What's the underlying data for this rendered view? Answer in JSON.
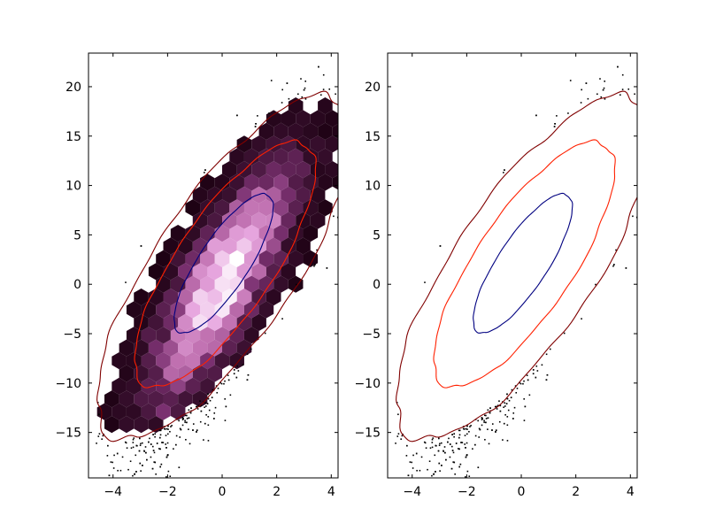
{
  "chart_data": [
    {
      "type": "hexbin_contour",
      "title": "",
      "xlabel": "",
      "ylabel": "",
      "xlim": [
        -4.9,
        4.25
      ],
      "ylim": [
        -19.6,
        23.4
      ],
      "xticks": [
        -4,
        -2,
        0,
        2,
        4
      ],
      "yticks": [
        -15,
        -10,
        -5,
        0,
        5,
        10,
        15,
        20
      ],
      "xtick_labels": [
        "−4",
        "−2",
        "0",
        "2",
        "4"
      ],
      "ytick_labels": [
        "−15",
        "−10",
        "−5",
        "0",
        "5",
        "10",
        "15",
        "20"
      ],
      "distribution": {
        "mean": [
          0,
          0
        ],
        "sd": [
          1.5,
          7
        ],
        "correlation": 0.8
      },
      "contour_levels": [
        {
          "name": "inner",
          "color": "#000080",
          "center": [
            0.05,
            2.1
          ],
          "semi_major": 7.2,
          "semi_minor": 1.05,
          "angle_deg": 78
        },
        {
          "name": "middle",
          "color": "#ff2000",
          "center": [
            0.1,
            2.0
          ],
          "semi_major": 12.7,
          "semi_minor": 2.05,
          "angle_deg": 78
        },
        {
          "name": "outer",
          "color": "#800000",
          "center": [
            0.1,
            1.7
          ],
          "semi_major": 17.8,
          "semi_minor": 2.95,
          "angle_deg": 78
        }
      ],
      "hexbin_colormap": [
        "#ffffff",
        "#e8a8e0",
        "#c070b0",
        "#7a3070",
        "#3a1030",
        "#1a0010"
      ],
      "outlier_color": "#000000"
    },
    {
      "type": "contour",
      "title": "",
      "xlabel": "",
      "ylabel": "",
      "xlim": [
        -4.9,
        4.25
      ],
      "ylim": [
        -19.6,
        23.4
      ],
      "xticks": [
        -4,
        -2,
        0,
        2,
        4
      ],
      "yticks": [
        -15,
        -10,
        -5,
        0,
        5,
        10,
        15,
        20
      ],
      "xtick_labels": [
        "−4",
        "−2",
        "0",
        "2",
        "4"
      ],
      "ytick_labels": [
        "−15",
        "−10",
        "−5",
        "0",
        "5",
        "10",
        "15",
        "20"
      ],
      "contour_levels": [
        {
          "name": "inner",
          "color": "#000080",
          "center": [
            0.05,
            2.1
          ],
          "semi_major": 7.2,
          "semi_minor": 1.05,
          "angle_deg": 78
        },
        {
          "name": "middle",
          "color": "#ff2000",
          "center": [
            0.1,
            2.0
          ],
          "semi_major": 12.7,
          "semi_minor": 2.05,
          "angle_deg": 78
        },
        {
          "name": "outer",
          "color": "#800000",
          "center": [
            0.1,
            1.7
          ],
          "semi_major": 17.8,
          "semi_minor": 2.95,
          "angle_deg": 78
        }
      ],
      "outlier_color": "#000000"
    }
  ]
}
